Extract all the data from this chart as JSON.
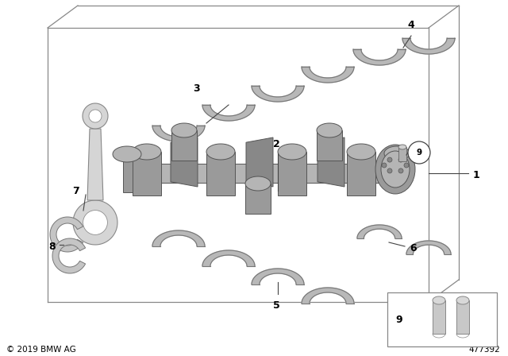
{
  "bg_color": "#ffffff",
  "line_color": "#444444",
  "text_color": "#000000",
  "shell_fc": "#b8b8b8",
  "shell_ec": "#777777",
  "crank_fc": "#a0a0a0",
  "crank_ec": "#555555",
  "rod_fc": "#d8d8d8",
  "rod_ec": "#888888",
  "box_color": "#888888",
  "copyright": "© 2019 BMW AG",
  "part_number": "477392",
  "label_fontsize": 9,
  "small_fontsize": 7.5,
  "figw": 6.4,
  "figh": 4.48,
  "dpi": 100
}
